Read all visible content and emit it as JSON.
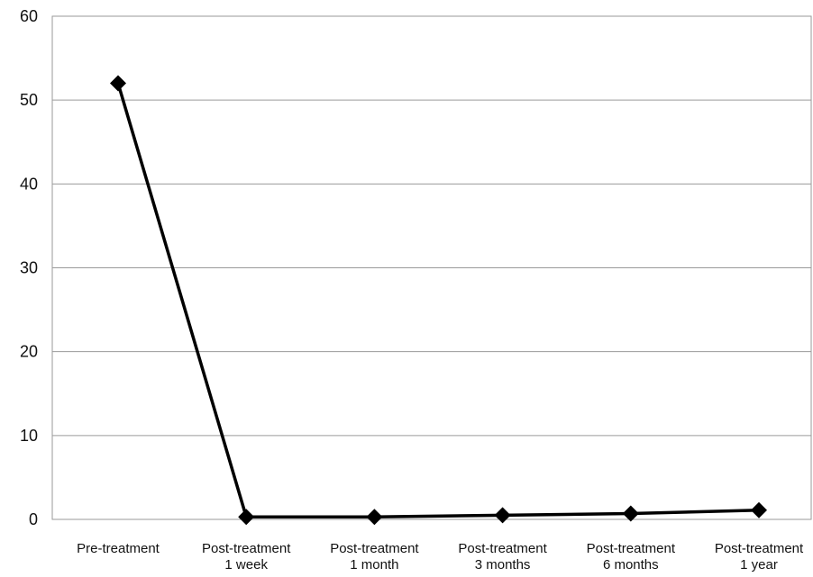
{
  "chart_data": {
    "type": "line",
    "title": "",
    "xlabel": "",
    "ylabel": "",
    "ylim": [
      0,
      60
    ],
    "yticks": [
      "0",
      "10",
      "20",
      "30",
      "40",
      "50",
      "60"
    ],
    "grid": true,
    "legend": "none",
    "categories": [
      [
        "Pre-treatment"
      ],
      [
        "Post-treatment",
        "1 week"
      ],
      [
        "Post-treatment",
        "1 month"
      ],
      [
        "Post-treatment",
        "3 months"
      ],
      [
        "Post-treatment",
        "6 months"
      ],
      [
        "Post-treatment",
        "1 year"
      ]
    ],
    "series": [
      {
        "values": [
          52,
          0.3,
          0.3,
          0.5,
          0.7,
          1.1
        ],
        "color": "#000000",
        "marker": "diamond"
      }
    ]
  }
}
